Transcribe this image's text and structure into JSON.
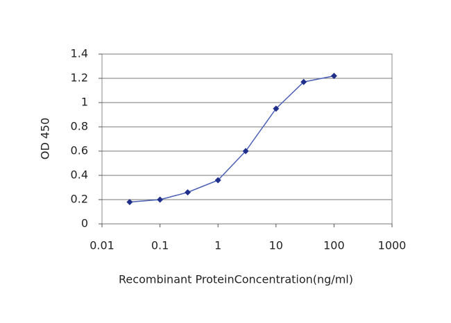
{
  "chart_data": {
    "type": "line",
    "x_label": "Recombinant ProteinConcentration(ng/ml)",
    "y_label": "OD 450",
    "x": [
      0.03,
      0.1,
      0.3,
      1,
      3,
      10,
      30,
      100
    ],
    "values": [
      0.18,
      0.2,
      0.26,
      0.36,
      0.6,
      0.95,
      1.17,
      1.22
    ],
    "color": "#4a5fb5",
    "marker_color": "#1f2f8a",
    "xscale": "log",
    "xlim": [
      0.01,
      1000
    ],
    "xticks": [
      0.01,
      0.1,
      1,
      10,
      100,
      1000
    ],
    "ylim": [
      0,
      1.4
    ],
    "yticks": [
      0,
      0.2,
      0.4,
      0.6,
      0.8,
      1,
      1.2,
      1.4
    ],
    "grid": true
  }
}
